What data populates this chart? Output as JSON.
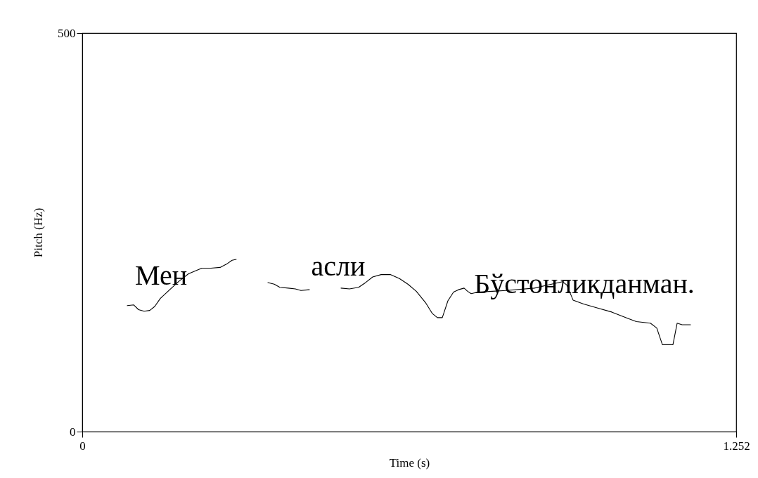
{
  "chart_data": {
    "type": "line",
    "xlabel": "Time (s)",
    "ylabel": "Pitch (Hz)",
    "xlim": [
      0,
      1.252
    ],
    "xticks": [
      0,
      1.252
    ],
    "ylim": [
      0,
      500
    ],
    "yticks": [
      0,
      500
    ],
    "grid": false,
    "legend": false,
    "marker": "none",
    "line_style": "solid",
    "annotations": [
      "Мен",
      "асли",
      "Бўстонликданман."
    ],
    "series": [
      {
        "color": "#000000",
        "x": [
          0.0862,
          0.0983,
          0.1077,
          0.1185,
          0.1292,
          0.1387,
          0.1494,
          0.1656,
          0.1858,
          0.2033,
          0.2289,
          0.2464,
          0.2639,
          0.276,
          0.2868,
          0.2948,
          0.32,
          0.3554,
          0.3675,
          0.3783,
          0.3945,
          0.4079,
          0.4187,
          0.4348,
          0.46,
          0.4954,
          0.5116,
          0.5291,
          0.5425,
          0.556,
          0.5722,
          0.5897,
          0.6072,
          0.6234,
          0.6395,
          0.657,
          0.6704,
          0.6799,
          0.6893,
          0.7,
          0.7108,
          0.7202,
          0.731,
          0.7377,
          0.7445,
          0.7579,
          0.7849,
          0.8118,
          0.8656,
          0.906,
          0.9195,
          0.9276,
          0.9397,
          0.9599,
          0.9868,
          1.0137,
          1.0447,
          1.0609,
          1.0878,
          1.0999,
          1.1107,
          1.1309,
          1.1389,
          1.1484,
          1.1645
        ],
        "values": [
          158,
          159,
          153,
          151,
          152,
          157,
          167,
          177,
          189,
          198,
          205,
          205,
          206,
          210,
          215,
          216,
          null,
          187,
          185,
          181,
          180,
          179,
          177,
          178,
          null,
          180,
          179,
          181,
          187,
          194,
          197,
          197,
          192,
          185,
          176,
          162,
          148,
          143,
          143,
          164,
          175,
          178,
          180,
          176,
          173,
          175,
          176,
          177,
          180,
          186,
          188,
          184,
          165,
          160,
          155,
          150,
          142,
          138,
          136,
          130,
          109,
          109,
          136,
          134,
          134
        ]
      }
    ]
  }
}
